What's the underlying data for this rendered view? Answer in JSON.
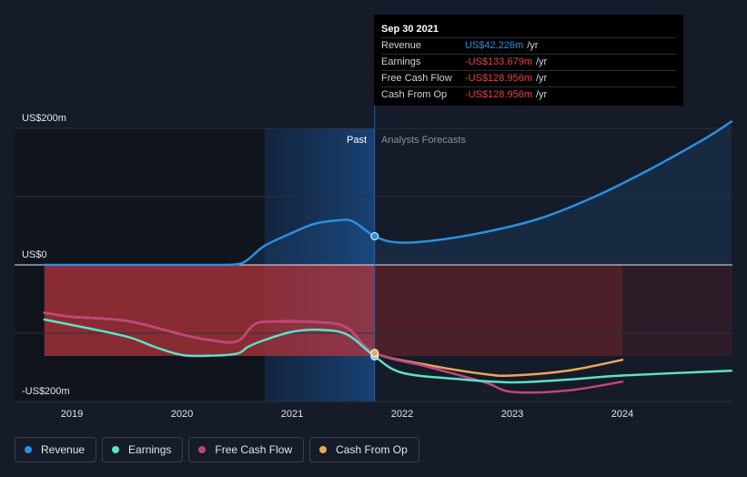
{
  "chart_data": {
    "type": "line",
    "y_unit_labels": {
      "top": "US$200m",
      "zero": "US$0",
      "bottom": "-US$200m"
    },
    "ylim": [
      -200,
      200
    ],
    "x_ticks": [
      "2019",
      "2020",
      "2021",
      "2022",
      "2023",
      "2024"
    ],
    "period_labels": {
      "past": "Past",
      "forecast": "Analysts Forecasts"
    },
    "divider_x": 2021.75,
    "highlight_range": [
      2020.75,
      2021.75
    ],
    "series": [
      {
        "name": "Revenue",
        "color": "#2b8fe0",
        "points": [
          [
            2018.75,
            0
          ],
          [
            2019.5,
            0
          ],
          [
            2020.25,
            0
          ],
          [
            2020.5,
            1
          ],
          [
            2020.6,
            8
          ],
          [
            2020.75,
            28
          ],
          [
            2021.0,
            47
          ],
          [
            2021.2,
            60
          ],
          [
            2021.4,
            65
          ],
          [
            2021.55,
            64
          ],
          [
            2021.75,
            42
          ],
          [
            2021.95,
            33
          ],
          [
            2022.25,
            35
          ],
          [
            2022.75,
            48
          ],
          [
            2023.25,
            68
          ],
          [
            2023.75,
            100
          ],
          [
            2024.25,
            140
          ],
          [
            2024.75,
            185
          ],
          [
            2024.99,
            210
          ]
        ]
      },
      {
        "name": "Earnings",
        "color": "#5ee0c8",
        "points": [
          [
            2018.75,
            -80
          ],
          [
            2019.0,
            -88
          ],
          [
            2019.5,
            -105
          ],
          [
            2019.75,
            -120
          ],
          [
            2020.0,
            -132
          ],
          [
            2020.25,
            -133
          ],
          [
            2020.5,
            -130
          ],
          [
            2020.6,
            -120
          ],
          [
            2020.75,
            -110
          ],
          [
            2021.0,
            -98
          ],
          [
            2021.25,
            -95
          ],
          [
            2021.5,
            -102
          ],
          [
            2021.75,
            -134
          ],
          [
            2022.0,
            -158
          ],
          [
            2022.5,
            -167
          ],
          [
            2023.0,
            -172
          ],
          [
            2023.5,
            -168
          ],
          [
            2024.0,
            -162
          ],
          [
            2024.99,
            -155
          ]
        ]
      },
      {
        "name": "Free Cash Flow",
        "color": "#c0457e",
        "points": [
          [
            2018.75,
            -70
          ],
          [
            2019.0,
            -76
          ],
          [
            2019.5,
            -82
          ],
          [
            2020.0,
            -102
          ],
          [
            2020.25,
            -110
          ],
          [
            2020.5,
            -112
          ],
          [
            2020.65,
            -88
          ],
          [
            2020.8,
            -83
          ],
          [
            2021.25,
            -84
          ],
          [
            2021.5,
            -92
          ],
          [
            2021.75,
            -129
          ],
          [
            2022.25,
            -150
          ],
          [
            2022.75,
            -172
          ],
          [
            2023.0,
            -186
          ],
          [
            2023.5,
            -184
          ],
          [
            2024.0,
            -171
          ]
        ]
      },
      {
        "name": "Cash From Op",
        "color": "#e8a85c",
        "points": [
          [
            2018.75,
            -70
          ],
          [
            2019.0,
            -76
          ],
          [
            2019.5,
            -82
          ],
          [
            2020.0,
            -102
          ],
          [
            2020.25,
            -110
          ],
          [
            2020.5,
            -112
          ],
          [
            2020.65,
            -88
          ],
          [
            2020.8,
            -83
          ],
          [
            2021.25,
            -84
          ],
          [
            2021.5,
            -92
          ],
          [
            2021.75,
            -129
          ],
          [
            2022.25,
            -147
          ],
          [
            2022.75,
            -160
          ],
          [
            2023.0,
            -162
          ],
          [
            2023.5,
            -155
          ],
          [
            2024.0,
            -139
          ]
        ]
      }
    ],
    "tooltip": {
      "date": "Sep 30 2021",
      "rows": [
        {
          "label": "Revenue",
          "value": "US$42.226m",
          "unit": "/yr",
          "color": "#2b8fe0"
        },
        {
          "label": "Earnings",
          "value": "-US$133.679m",
          "unit": "/yr",
          "color": "#e8423a"
        },
        {
          "label": "Free Cash Flow",
          "value": "-US$128.956m",
          "unit": "/yr",
          "color": "#e8423a"
        },
        {
          "label": "Cash From Op",
          "value": "-US$128.956m",
          "unit": "/yr",
          "color": "#e8423a"
        }
      ]
    },
    "legend": [
      {
        "label": "Revenue",
        "color": "#2b8fe0"
      },
      {
        "label": "Earnings",
        "color": "#5ee0c8"
      },
      {
        "label": "Free Cash Flow",
        "color": "#c0457e"
      },
      {
        "label": "Cash From Op",
        "color": "#e8a85c"
      }
    ]
  }
}
